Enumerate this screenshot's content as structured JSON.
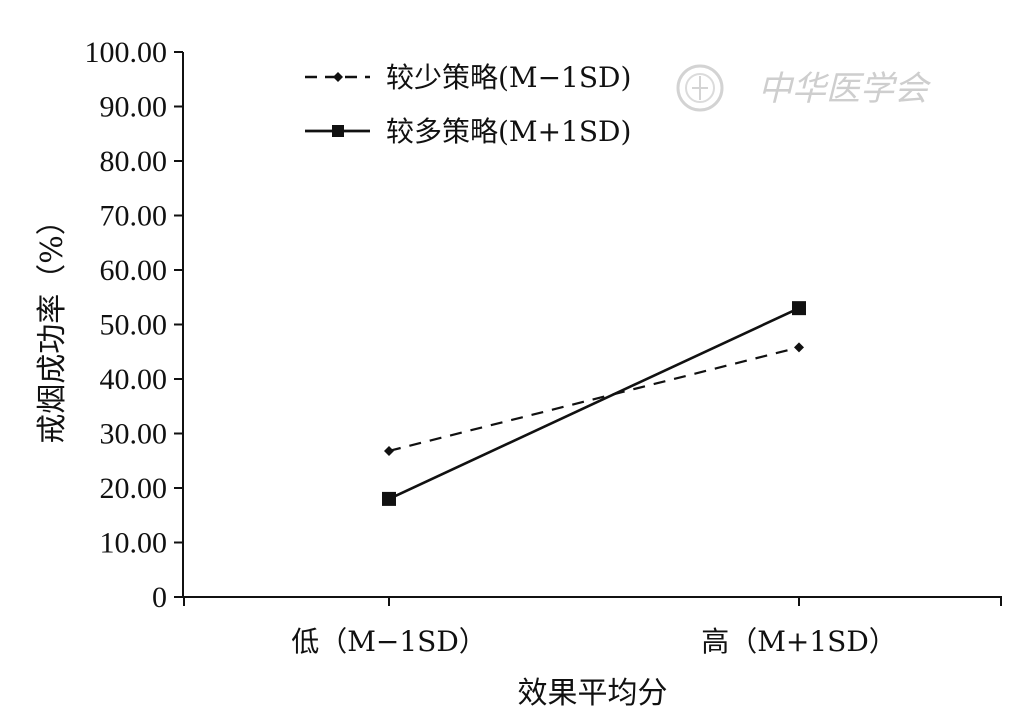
{
  "chart_data": {
    "type": "line",
    "categories": [
      "低（M−1SD）",
      "高（M+1SD）"
    ],
    "series": [
      {
        "name": "较少策略(M−1SD)",
        "values": [
          26.8,
          45.8
        ],
        "style": "dashed",
        "marker": "diamond",
        "color": "#111111"
      },
      {
        "name": "较多策略(M+1SD)",
        "values": [
          18.0,
          53.0
        ],
        "style": "solid",
        "marker": "square",
        "color": "#111111"
      }
    ],
    "xlabel": "效果平均分",
    "ylabel": "戒烟成功率（%）",
    "ylim": [
      0,
      100
    ],
    "yticks": [
      "0",
      "10.00",
      "20.00",
      "30.00",
      "40.00",
      "50.00",
      "60.00",
      "70.00",
      "80.00",
      "90.00",
      "100.00"
    ],
    "legend_position": "top-left",
    "grid": false
  },
  "watermark": {
    "text": "中华医学会",
    "icon": "society-seal-icon"
  }
}
